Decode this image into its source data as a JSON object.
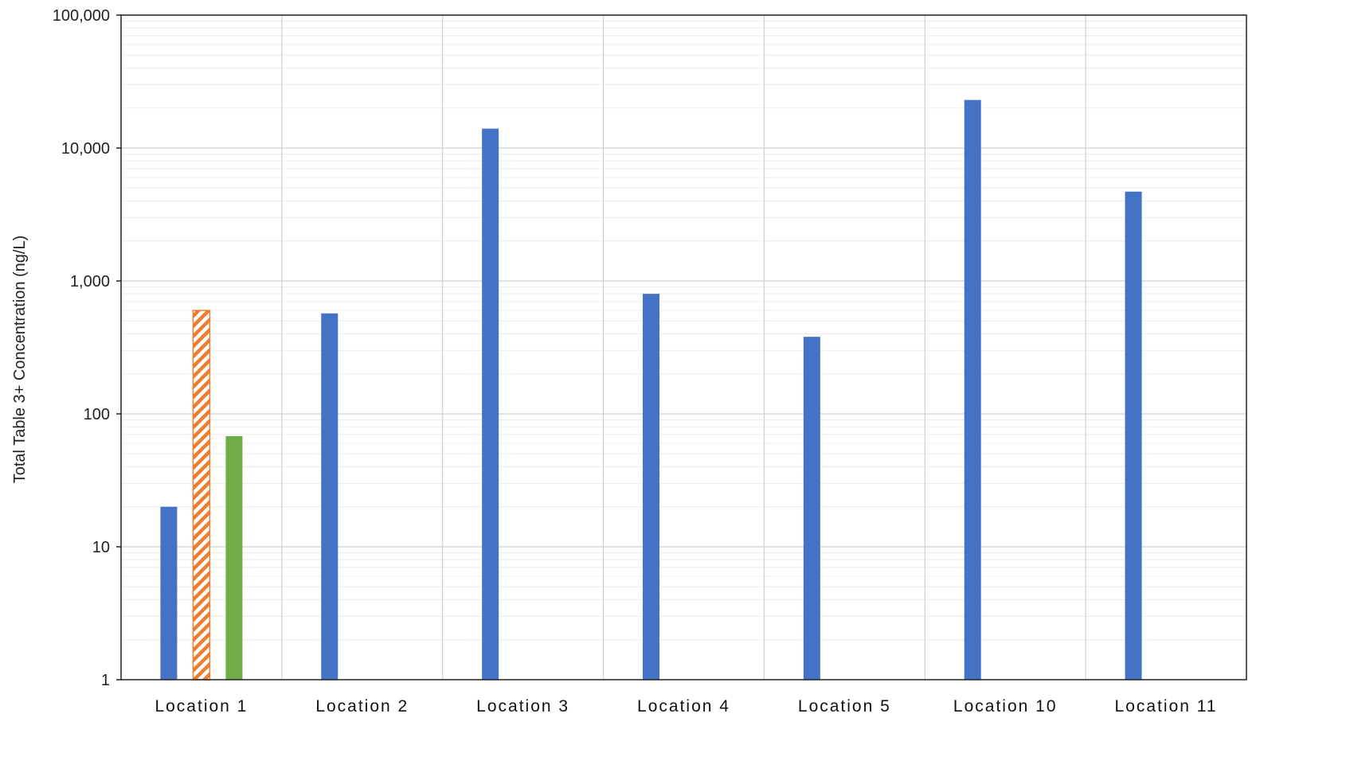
{
  "chart_data": {
    "type": "bar",
    "title": "",
    "xlabel": "",
    "ylabel": "Total Table 3+ Concentration (ng/L)",
    "yscale": "log",
    "ylim": [
      1,
      100000
    ],
    "yticks": [
      1,
      10,
      100,
      1000,
      10000,
      100000
    ],
    "ytick_labels": [
      "1",
      "10",
      "100",
      "1,000",
      "10,000",
      "100,000"
    ],
    "grid": true,
    "legend": "none",
    "categories": [
      "Location 1",
      "Location 2",
      "Location 3",
      "Location 4",
      "Location 5",
      "Location 10",
      "Location 11"
    ],
    "series": [
      {
        "color": "#4472c4",
        "pattern": "solid",
        "values": [
          20,
          570,
          14000,
          800,
          380,
          23000,
          4700
        ]
      },
      {
        "color": "#ed7d31",
        "pattern": "diagonal-hatch",
        "values": [
          600,
          null,
          null,
          null,
          null,
          null,
          null
        ]
      },
      {
        "color": "#70ad47",
        "pattern": "solid",
        "values": [
          68,
          null,
          null,
          null,
          null,
          null,
          null
        ]
      }
    ]
  }
}
